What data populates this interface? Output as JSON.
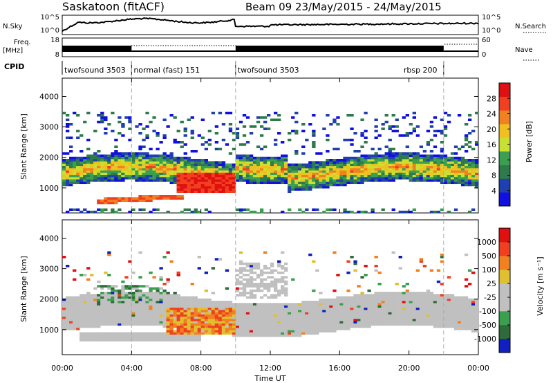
{
  "header": {
    "station": "Saskatoon (fitACF)",
    "beam_info": "Beam 09  23/May/2015 - 24/May/2015"
  },
  "panels": {
    "nsky": {
      "left_label": "N.Sky",
      "right_label": "N.Search",
      "left_ticks": [
        "10^5",
        "10^0"
      ],
      "right_ticks": [
        "10^5",
        "10^0"
      ]
    },
    "freq": {
      "left_label_line1": "Freq.",
      "left_label_line2": "[MHz]",
      "left_ticks": [
        "18",
        "8"
      ],
      "right_ticks": [
        "60",
        "0"
      ],
      "right_label": "Nave"
    },
    "cpid": {
      "label": "CPID",
      "segments": [
        {
          "name": "twofsound 3503",
          "start": 0,
          "end": 4
        },
        {
          "name": "normal (fast) 151",
          "start": 4,
          "end": 10
        },
        {
          "name": "twofsound 3503",
          "start": 10,
          "end": 22
        },
        {
          "name": "rbsp 200",
          "start": 22,
          "end": 24
        }
      ]
    }
  },
  "axes": {
    "ylabel": "Slant Range [km]",
    "xlabel": "Time UT",
    "x_ticks": [
      "00:00",
      "04:00",
      "08:00",
      "12:00",
      "16:00",
      "20:00",
      "00:00"
    ],
    "y_ticks": [
      "1000",
      "2000",
      "3000",
      "4000"
    ]
  },
  "colorbars": {
    "power": {
      "label": "Power [dB]",
      "ticks": [
        "4",
        "8",
        "12",
        "16",
        "20",
        "24",
        "28"
      ],
      "colors": [
        "#1010e0",
        "#2040b0",
        "#2e7a4a",
        "#3aa050",
        "#c8e030",
        "#f0c020",
        "#f08020",
        "#f04020",
        "#e01010"
      ]
    },
    "velocity": {
      "label": "Velocity [m s⁻¹]",
      "ticks": [
        "1000",
        "500",
        "100",
        "25",
        "-25",
        "-100",
        "-500",
        "-1000"
      ],
      "colors": [
        "#1020c0",
        "#2e6a3a",
        "#3aa050",
        "#c0c0c0",
        "#c0c0c0",
        "#e0c030",
        "#f08020",
        "#f04020",
        "#e01010"
      ]
    }
  },
  "chart_data": [
    {
      "type": "heatmap",
      "name": "power",
      "x_units": "hours UT",
      "xlim": [
        0,
        24
      ],
      "ylim": [
        180,
        4600
      ],
      "regions": [
        {
          "label": "main_echo_band",
          "x": [
            0,
            24
          ],
          "range_km": [
            1000,
            2000
          ],
          "dominant_power_dB": 16
        },
        {
          "label": "strong_echo_1",
          "x": [
            6.5,
            10
          ],
          "range_km": [
            900,
            1500
          ],
          "dominant_power_dB": 28
        },
        {
          "label": "lower_band",
          "x": [
            2,
            7
          ],
          "range_km": [
            500,
            800
          ],
          "dominant_power_dB": 24
        },
        {
          "label": "upper_scatter",
          "x": [
            0,
            24
          ],
          "range_km": [
            2200,
            3500
          ],
          "dominant_power_dB": 6
        }
      ]
    },
    {
      "type": "heatmap",
      "name": "velocity",
      "x_units": "hours UT",
      "xlim": [
        0,
        24
      ],
      "ylim": [
        180,
        4600
      ],
      "regions": [
        {
          "label": "ground_scatter_band",
          "x": [
            0,
            24
          ],
          "range_km": [
            800,
            2200
          ],
          "dominant_velocity": 0
        },
        {
          "label": "negative_velocity_echo",
          "x": [
            6,
            10
          ],
          "range_km": [
            900,
            1700
          ],
          "dominant_velocity": -300
        },
        {
          "label": "mixed_echo",
          "x": [
            2,
            6
          ],
          "range_km": [
            1900,
            2500
          ],
          "dominant_velocity": 100
        }
      ]
    }
  ]
}
